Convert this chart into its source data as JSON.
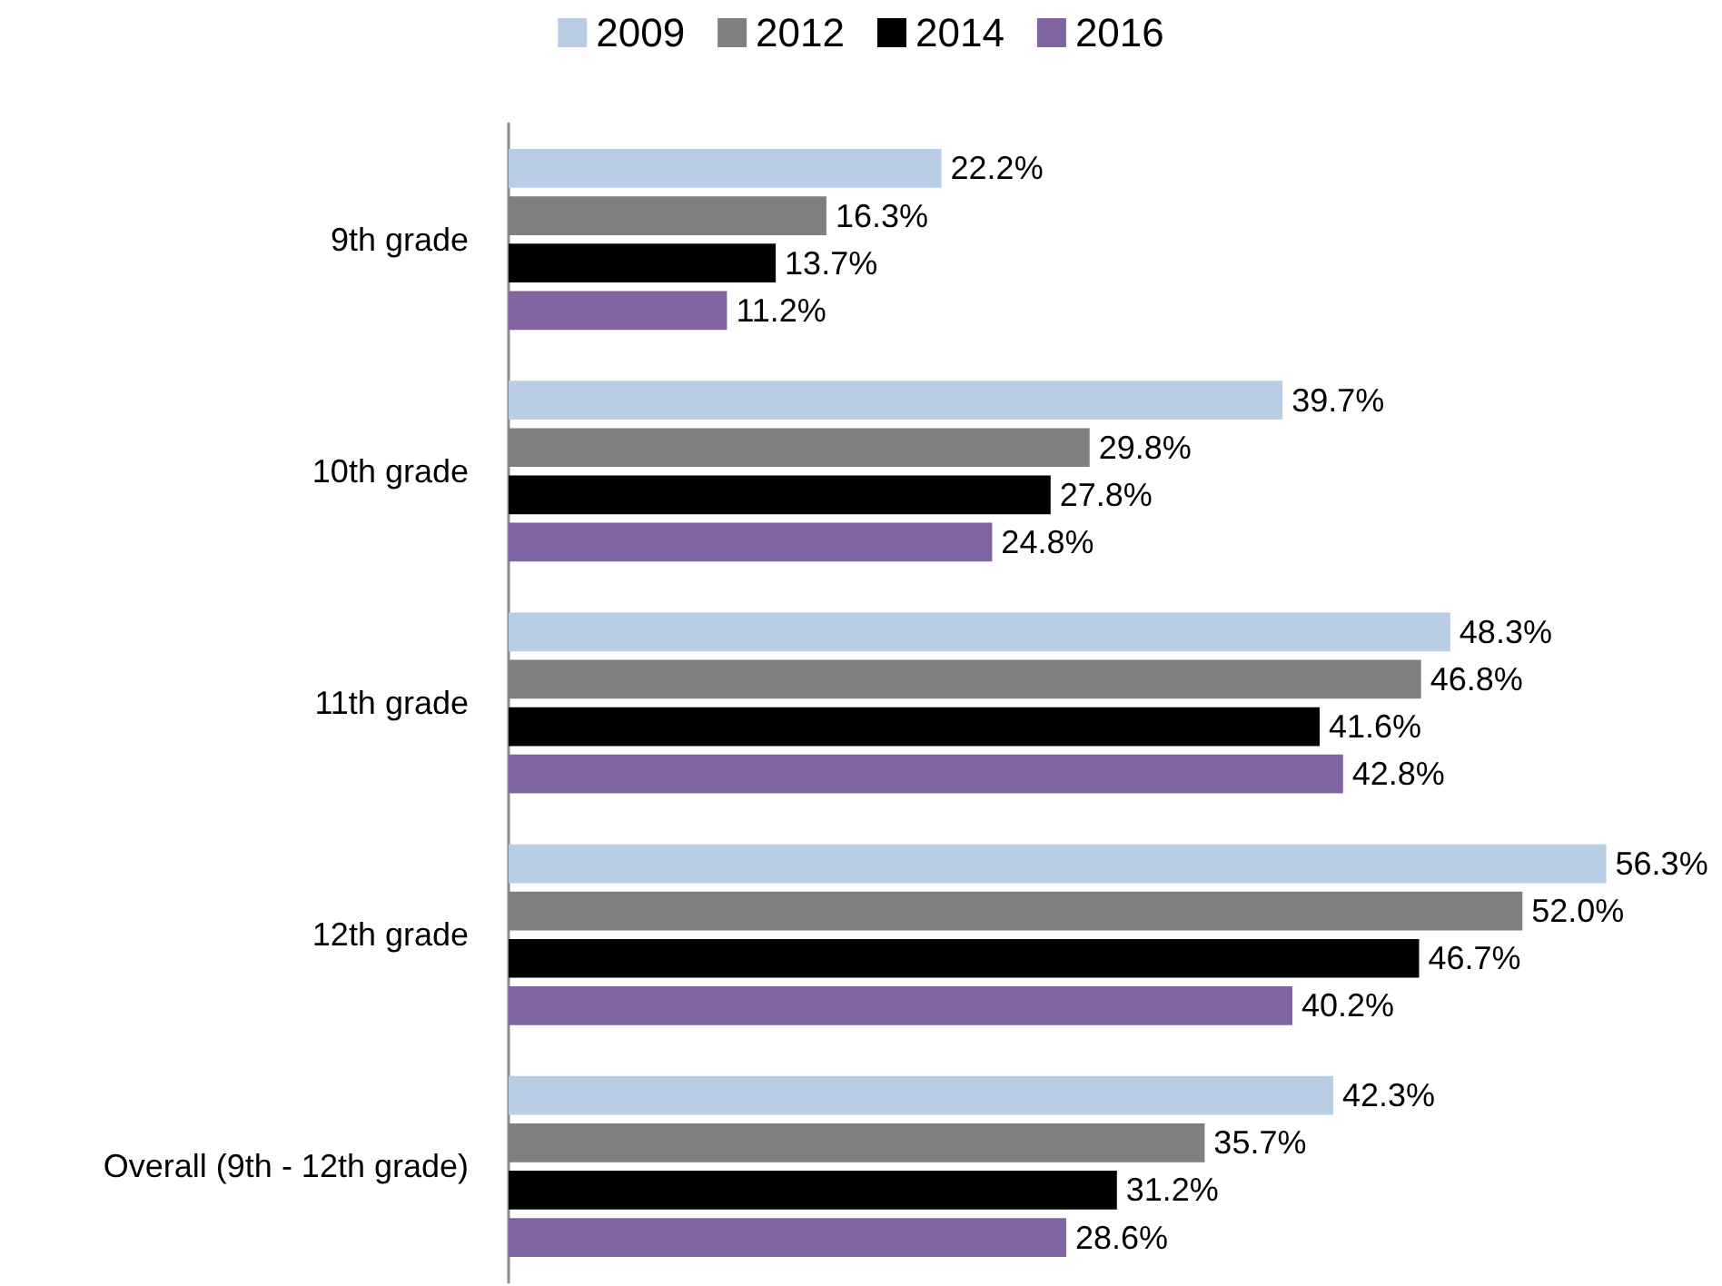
{
  "chart_data": {
    "type": "bar",
    "orientation": "horizontal",
    "categories": [
      "9th grade",
      "10th grade",
      "11th grade",
      "12th grade",
      "Overall (9th - 12th grade)"
    ],
    "series": [
      {
        "name": "2009",
        "color": "#b9cde5",
        "values": [
          22.2,
          39.7,
          48.3,
          56.3,
          42.3
        ],
        "value_labels": [
          "22.2%",
          "39.7%",
          "48.3%",
          "56.3%",
          "42.3%"
        ]
      },
      {
        "name": "2012",
        "color": "#7f7f7f",
        "values": [
          16.3,
          29.8,
          46.8,
          52.0,
          35.7
        ],
        "value_labels": [
          "16.3%",
          "29.8%",
          "46.8%",
          "52.0%",
          "35.7%"
        ]
      },
      {
        "name": "2014",
        "color": "#000000",
        "values": [
          13.7,
          27.8,
          41.6,
          46.7,
          31.2
        ],
        "value_labels": [
          "13.7%",
          "27.8%",
          "41.6%",
          "46.7%",
          "31.2%"
        ]
      },
      {
        "name": "2016",
        "color": "#8064a2",
        "values": [
          11.2,
          24.8,
          42.8,
          40.2,
          28.6
        ],
        "value_labels": [
          "11.2%",
          "24.8%",
          "42.8%",
          "40.2%",
          "28.6%"
        ]
      }
    ],
    "legend": "top",
    "grid": false,
    "tick_labels": "y"
  }
}
